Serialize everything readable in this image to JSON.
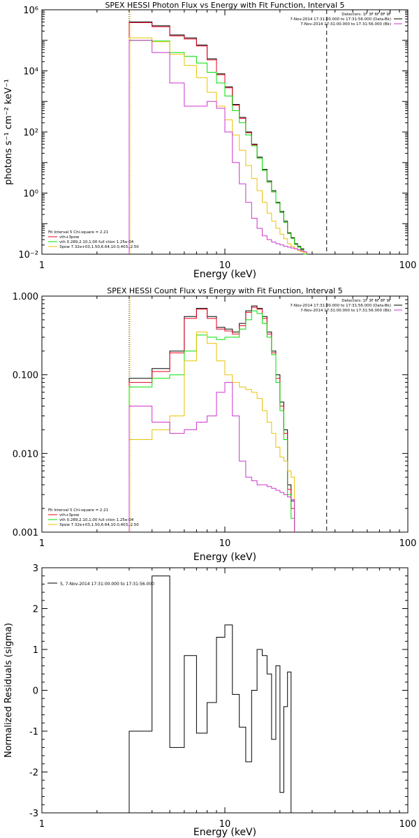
{
  "chart_data": [
    {
      "type": "line",
      "title": "SPEX HESSI Photon Flux vs Energy with Fit Function, Interval 5",
      "xlabel": "Energy (keV)",
      "ylabel": "photons s⁻¹ cm⁻² keV⁻¹",
      "xscale": "log",
      "yscale": "log",
      "xlim": [
        1,
        100
      ],
      "ylim": [
        0.01,
        1000000
      ],
      "xticks": [
        {
          "v": 1,
          "label": "1"
        },
        {
          "v": 10,
          "label": "10"
        },
        {
          "v": 100,
          "label": "100"
        }
      ],
      "yticks": [
        {
          "v": 0.01,
          "label": "10⁻²"
        },
        {
          "v": 1,
          "label": "10⁰"
        },
        {
          "v": 100,
          "label": "10²"
        },
        {
          "v": 10000,
          "label": "10⁴"
        },
        {
          "v": 1000000,
          "label": "10⁶"
        }
      ],
      "vlines": [
        {
          "x": 3,
          "style": "dotted",
          "color": "#000000"
        },
        {
          "x": 3,
          "style": "dotted",
          "color": "#e8c200"
        },
        {
          "x": 36,
          "style": "dashed",
          "color": "#000000"
        }
      ],
      "edges": [
        3,
        4,
        5,
        6,
        7,
        8,
        9,
        10,
        11,
        12,
        13,
        14,
        15,
        16,
        17,
        18,
        19,
        20,
        21,
        22,
        23,
        24,
        25,
        26,
        27,
        28,
        29,
        30,
        31,
        32,
        33,
        34,
        35,
        36
      ],
      "legend_header": [
        "Detectors: 1F 3F 6F 8F 9F",
        "7-Nov-2014 17:31:00.000 to 17:31:56.000 (Data-Bk)",
        "7-Nov-2014 17:31:00.000 to 17:31:56.000 (Bk)"
      ],
      "legend_header_colors": [
        "#000000",
        "#000000",
        "#cc33cc"
      ],
      "fit_label": "Fit Interval 5   Chi-square = 2.21",
      "fit_lines": [
        {
          "text": "vth+3pow",
          "color": "#e8001c"
        },
        {
          "text": "vth 0.289,2.10,1.00  full ction 1.25e-04",
          "color": "#00e000"
        },
        {
          "text": "3pow 7.32e+03,1.50,6.64,10.0,403.,2.50",
          "color": "#e8c200"
        }
      ],
      "series": [
        {
          "color": "#000000",
          "values": [
            400000,
            300000,
            150000,
            120000,
            70000,
            25000,
            8000,
            3000,
            800,
            300,
            100,
            40,
            15,
            6,
            2.5,
            1.2,
            0.5,
            0.25,
            0.12,
            0.05,
            0.035,
            0.022,
            0.018,
            0.015,
            0.008
          ]
        },
        {
          "color": "#e8001c",
          "values": [
            380000,
            280000,
            140000,
            110000,
            65000,
            23000,
            7500,
            2800,
            750,
            280,
            95,
            38,
            14,
            5.5,
            2.3,
            1.1,
            0.47,
            0.23,
            0.11,
            0.048,
            0.033,
            0.021,
            0.017,
            0.014,
            0.0075
          ]
        },
        {
          "color": "#00e000",
          "values": [
            100000,
            95000,
            40000,
            30000,
            18000,
            9000,
            4000,
            1500,
            500,
            200,
            80,
            35,
            14,
            5.5,
            2.3,
            1.1,
            0.47,
            0.23,
            0.11,
            0.048,
            0.033,
            0.021,
            0.017,
            0.014,
            0.0075
          ]
        },
        {
          "color": "#e8c200",
          "values": [
            120000,
            90000,
            35000,
            15000,
            6000,
            2000,
            700,
            250,
            80,
            25,
            8,
            3,
            1.2,
            0.5,
            0.22,
            0.12,
            0.07,
            0.045,
            0.032,
            0.022,
            0.018,
            0.015,
            0.013,
            0.012,
            0.011
          ]
        },
        {
          "color": "#cc33cc",
          "values": [
            100000,
            40000,
            4000,
            700,
            700,
            1000,
            600,
            100,
            10,
            2,
            0.5,
            0.15,
            0.07,
            0.04,
            0.03,
            0.025,
            0.022,
            0.02,
            0.018,
            0.017,
            0.016,
            0.015,
            0.014,
            0.013,
            0.012
          ]
        }
      ]
    },
    {
      "type": "line",
      "title": "SPEX HESSI Count Flux vs Energy with Fit Function, Interval 5",
      "xlabel": "Energy (keV)",
      "ylabel": "",
      "xscale": "log",
      "yscale": "log",
      "xlim": [
        1,
        100
      ],
      "ylim": [
        0.001,
        1.0
      ],
      "xticks": [
        {
          "v": 1,
          "label": "1"
        },
        {
          "v": 10,
          "label": "10"
        },
        {
          "v": 100,
          "label": "100"
        }
      ],
      "yticks": [
        {
          "v": 0.001,
          "label": "0.001"
        },
        {
          "v": 0.01,
          "label": "0.010"
        },
        {
          "v": 0.1,
          "label": "0.100"
        },
        {
          "v": 1.0,
          "label": "1.000"
        }
      ],
      "vlines": [
        {
          "x": 3,
          "style": "dotted",
          "color": "#000000"
        },
        {
          "x": 3,
          "style": "dotted",
          "color": "#e8c200"
        },
        {
          "x": 36,
          "style": "dashed",
          "color": "#000000"
        }
      ],
      "edges": [
        3,
        4,
        5,
        6,
        7,
        8,
        9,
        10,
        11,
        12,
        13,
        14,
        15,
        16,
        17,
        18,
        19,
        20,
        21,
        22,
        23,
        24,
        25,
        26,
        27,
        28,
        29,
        30,
        31,
        32,
        33,
        34,
        35,
        36
      ],
      "legend_header": [
        "Detectors: 1F 3F 6F 8F 9F",
        "7-Nov-2014 17:31:00.000 to 17:31:56.000 (Data-Bk)",
        "7-Nov-2014 17:31:00.000 to 17:31:56.000 (Bk)"
      ],
      "legend_header_colors": [
        "#000000",
        "#000000",
        "#cc33cc"
      ],
      "fit_label": "Fit Interval 5   Chi-square = 2.21",
      "fit_lines": [
        {
          "text": "vth+3pow",
          "color": "#e8001c"
        },
        {
          "text": "vth 0.289,2.10,1.00  full ction 1.25e-04",
          "color": "#00e000"
        },
        {
          "text": "3pow 7.32e+03,1.50,6.64,10.0,403.,2.50",
          "color": "#e8c200"
        }
      ],
      "series": [
        {
          "color": "#000000",
          "values": [
            0.09,
            0.12,
            0.2,
            0.55,
            0.7,
            0.55,
            0.4,
            0.38,
            0.35,
            0.45,
            0.65,
            0.75,
            0.7,
            0.55,
            0.35,
            0.2,
            0.1,
            0.045,
            0.02,
            0.004,
            0.0025
          ]
        },
        {
          "color": "#e8001c",
          "values": [
            0.08,
            0.11,
            0.19,
            0.52,
            0.68,
            0.52,
            0.38,
            0.36,
            0.33,
            0.42,
            0.62,
            0.72,
            0.68,
            0.52,
            0.33,
            0.19,
            0.09,
            0.04,
            0.018,
            0.0035,
            0.002
          ]
        },
        {
          "color": "#00e000",
          "values": [
            0.07,
            0.09,
            0.1,
            0.2,
            0.32,
            0.3,
            0.28,
            0.3,
            0.3,
            0.38,
            0.5,
            0.65,
            0.6,
            0.45,
            0.3,
            0.18,
            0.08,
            0.035,
            0.015,
            0.003,
            0.0015
          ]
        },
        {
          "color": "#e8c200",
          "values": [
            0.015,
            0.02,
            0.03,
            0.15,
            0.35,
            0.25,
            0.15,
            0.1,
            0.08,
            0.07,
            0.065,
            0.06,
            0.05,
            0.035,
            0.025,
            0.018,
            0.012,
            0.009,
            0.008,
            0.006,
            0.005
          ]
        },
        {
          "color": "#cc33cc",
          "values": [
            0.04,
            0.025,
            0.018,
            0.02,
            0.025,
            0.03,
            0.06,
            0.08,
            0.03,
            0.008,
            0.005,
            0.0045,
            0.004,
            0.004,
            0.0038,
            0.0036,
            0.0034,
            0.0032,
            0.003,
            0.0028,
            0.0026
          ]
        }
      ]
    },
    {
      "type": "line",
      "title": "",
      "xlabel": "Energy (keV)",
      "ylabel": "Normalized Residuals (sigma)",
      "xscale": "log",
      "yscale": "linear",
      "xlim": [
        1,
        100
      ],
      "ylim": [
        -3,
        3
      ],
      "xticks": [
        {
          "v": 1,
          "label": "1"
        },
        {
          "v": 10,
          "label": "10"
        },
        {
          "v": 100,
          "label": "100"
        }
      ],
      "yticks": [
        {
          "v": -3,
          "label": "-3"
        },
        {
          "v": -2,
          "label": "-2"
        },
        {
          "v": -1,
          "label": "-1"
        },
        {
          "v": 0,
          "label": "0"
        },
        {
          "v": 1,
          "label": "1"
        },
        {
          "v": 2,
          "label": "2"
        },
        {
          "v": 3,
          "label": "3"
        }
      ],
      "vlines": [],
      "legend_header": [
        "5, 7-Nov-2014 17:31:00.000 to 17:31:56.000"
      ],
      "legend_header_colors": [
        "#000000"
      ],
      "fit_label": "",
      "fit_lines": [],
      "edges": [
        3,
        4,
        5,
        6,
        7,
        8,
        9,
        10,
        11,
        12,
        13,
        14,
        15,
        16,
        17,
        18,
        19,
        20,
        21,
        22,
        23,
        24,
        25,
        26,
        27,
        28,
        29,
        30,
        31,
        32,
        33,
        34,
        35,
        36
      ],
      "series": [
        {
          "color": "#000000",
          "values": [
            -1.0,
            2.8,
            -1.4,
            0.85,
            -1.05,
            -0.3,
            1.3,
            1.6,
            -0.1,
            -0.9,
            -1.75,
            0.0,
            1.0,
            0.85,
            0.4,
            -1.2,
            0.6,
            -2.5,
            -0.4,
            0.45
          ]
        }
      ]
    }
  ]
}
